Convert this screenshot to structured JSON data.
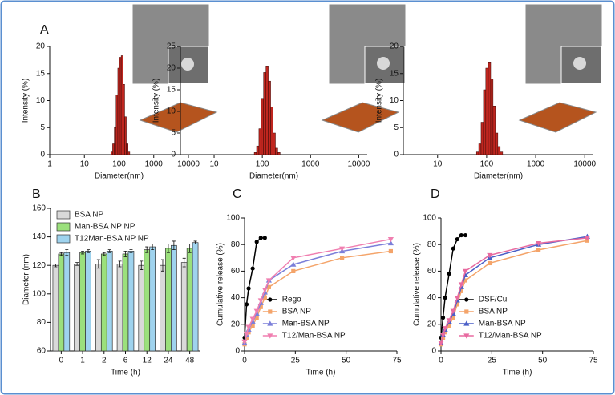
{
  "chart_data": [
    {
      "type": "histogram",
      "panel": "A",
      "x_label": "Diameter(nm)",
      "y_label": "Intensity (%)",
      "xscale": "log",
      "xlim": [
        1,
        10000
      ],
      "xticks": [
        1,
        10,
        100,
        1000,
        10000
      ],
      "ylim": [
        0,
        20
      ],
      "yticks": [
        0,
        5,
        10,
        15,
        20
      ],
      "color": "#c0261f",
      "bins": [
        58,
        65,
        73,
        82,
        92,
        103,
        115,
        129,
        145,
        162,
        182,
        204
      ],
      "values": [
        0.5,
        2,
        5,
        11,
        16,
        18,
        18.3,
        13,
        7,
        2,
        0.5
      ]
    },
    {
      "type": "histogram",
      "x_label": "Diameter(nm)",
      "y_label": "Intensity (%)",
      "xscale": "log",
      "xlim": [
        2,
        15000
      ],
      "xticks": [
        10,
        100,
        1000,
        10000
      ],
      "ylim": [
        0,
        25
      ],
      "yticks": [
        0,
        5,
        10,
        15,
        20,
        25
      ],
      "color": "#c0261f",
      "bins": [
        68,
        76,
        85,
        95,
        106,
        119,
        133,
        149,
        167,
        187,
        209,
        234
      ],
      "values": [
        0.5,
        2,
        6,
        13,
        19,
        20.5,
        17,
        11,
        5,
        1.5,
        0.5
      ]
    },
    {
      "type": "histogram",
      "x_label": "Diameter(nm)",
      "y_label": "Intensity (%)",
      "xscale": "log",
      "xlim": [
        2,
        15000
      ],
      "xticks": [
        10,
        100,
        1000,
        10000
      ],
      "ylim": [
        0,
        20
      ],
      "yticks": [
        0,
        5,
        10,
        15,
        20
      ],
      "color": "#c0261f",
      "bins": [
        62,
        69,
        77,
        86,
        96,
        108,
        121,
        135,
        151,
        169,
        189,
        212
      ],
      "values": [
        0.5,
        2,
        6,
        12,
        16,
        17,
        14,
        9,
        4,
        1.5,
        0.5
      ]
    },
    {
      "type": "bar",
      "panel": "B",
      "x_label": "Time (h)",
      "y_label": "Diameter (nm)",
      "legend": "upper left",
      "categories": [
        "0",
        "1",
        "2",
        "6",
        "12",
        "24",
        "48"
      ],
      "ylim": [
        60,
        160
      ],
      "yticks": [
        60,
        80,
        100,
        120,
        140,
        160
      ],
      "series": [
        {
          "name": "BSA NP",
          "color": "#d9d9d9",
          "values": [
            120,
            121,
            121,
            121,
            120,
            120,
            122
          ],
          "errors": [
            1,
            1,
            3,
            2,
            3,
            4,
            3
          ]
        },
        {
          "name": "Man-BSA NP NP",
          "color": "#9be07c",
          "values": [
            128,
            129,
            128,
            128,
            131,
            132,
            132
          ],
          "errors": [
            1,
            1,
            1,
            2,
            2,
            3,
            3
          ]
        },
        {
          "name": "T12Man-BSA NP NP",
          "color": "#9fd3ee",
          "values": [
            129,
            130,
            130,
            130,
            133,
            134,
            136
          ],
          "errors": [
            2,
            1,
            1,
            1,
            2,
            3,
            1
          ]
        }
      ]
    },
    {
      "type": "line",
      "panel": "C",
      "x_label": "Time (h)",
      "y_label": "Cumulative release (%)",
      "legend": "lower right",
      "xlim": [
        0,
        75
      ],
      "xticks": [
        0,
        25,
        50,
        75
      ],
      "ylim": [
        0,
        100
      ],
      "yticks": [
        0,
        20,
        40,
        60,
        80,
        100
      ],
      "series": [
        {
          "name": "Rego",
          "color": "#000000",
          "marker": "circle",
          "x": [
            0,
            1,
            2,
            4,
            6,
            8,
            10
          ],
          "values": [
            10,
            35,
            47,
            62,
            82,
            85,
            85
          ]
        },
        {
          "name": "BSA NP",
          "color": "#f4a46a",
          "marker": "square",
          "x": [
            0,
            1,
            2,
            4,
            6,
            8,
            10,
            12,
            24,
            48,
            72
          ],
          "values": [
            5,
            10,
            14,
            19,
            25,
            33,
            40,
            48,
            60,
            70,
            75
          ]
        },
        {
          "name": "Man-BSA NP",
          "color": "#7b7fd9",
          "marker": "triangle-up",
          "x": [
            0,
            1,
            2,
            4,
            6,
            8,
            10,
            12,
            24,
            48,
            72
          ],
          "values": [
            6,
            12,
            16,
            22,
            28,
            36,
            44,
            53,
            65,
            75,
            81
          ]
        },
        {
          "name": "T12/Man-BSA NP",
          "color": "#f07fb0",
          "marker": "triangle-down",
          "x": [
            0,
            1,
            2,
            4,
            6,
            8,
            10,
            12,
            24,
            48,
            72
          ],
          "values": [
            7,
            13,
            18,
            24,
            30,
            38,
            46,
            53,
            70,
            77,
            84
          ]
        }
      ]
    },
    {
      "type": "line",
      "panel": "D",
      "x_label": "Time (h)",
      "y_label": "Cumulative release (%)",
      "legend": "lower right",
      "xlim": [
        0,
        75
      ],
      "xticks": [
        0,
        25,
        50,
        75
      ],
      "ylim": [
        0,
        100
      ],
      "yticks": [
        0,
        20,
        40,
        60,
        80,
        100
      ],
      "series": [
        {
          "name": "DSF/Cu",
          "color": "#000000",
          "marker": "circle",
          "x": [
            0,
            1,
            2,
            4,
            6,
            8,
            10,
            12
          ],
          "values": [
            10,
            25,
            40,
            58,
            77,
            84,
            87,
            87
          ]
        },
        {
          "name": "BSA NP",
          "color": "#f4a46a",
          "marker": "square",
          "x": [
            0,
            1,
            2,
            4,
            6,
            8,
            10,
            12,
            24,
            48,
            72
          ],
          "values": [
            5,
            10,
            14,
            19,
            25,
            35,
            45,
            53,
            66,
            76,
            83
          ]
        },
        {
          "name": "Man-BSA NP",
          "color": "#4a5fc7",
          "marker": "triangle-up",
          "x": [
            0,
            1,
            2,
            4,
            6,
            8,
            10,
            12,
            24,
            48,
            72
          ],
          "values": [
            6,
            12,
            16,
            22,
            28,
            38,
            48,
            57,
            70,
            80,
            86
          ]
        },
        {
          "name": "T12/Man-BSA NP",
          "color": "#e86aa0",
          "marker": "triangle-down",
          "x": [
            0,
            1,
            2,
            4,
            6,
            8,
            10,
            12,
            24,
            48,
            72
          ],
          "values": [
            6,
            12,
            17,
            23,
            30,
            40,
            50,
            60,
            72,
            81,
            85
          ]
        }
      ]
    }
  ]
}
